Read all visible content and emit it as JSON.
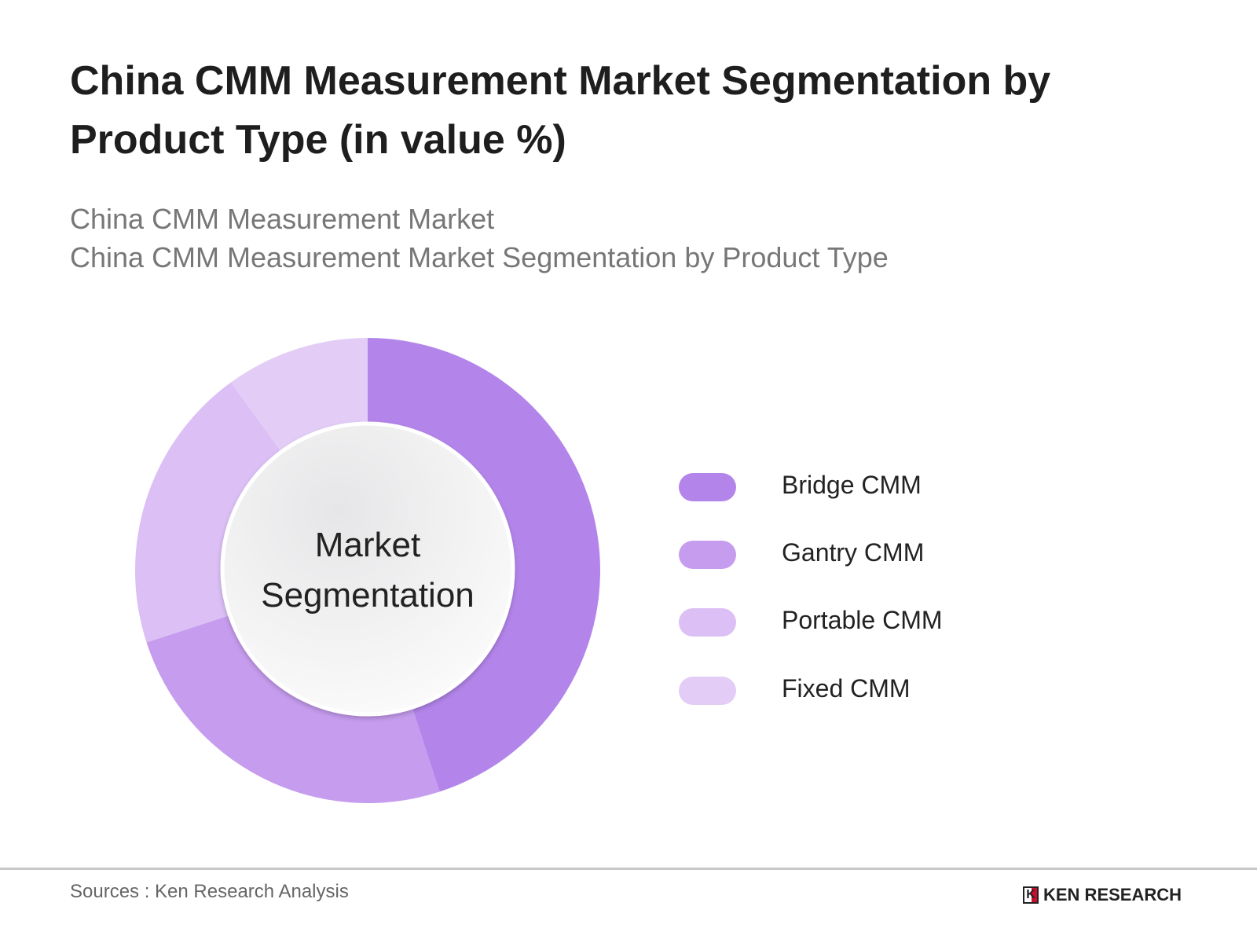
{
  "chart_data": {
    "type": "pie",
    "variant": "donut",
    "title": "China CMM Measurement Market Segmentation by Product Type (in value %)",
    "subtitle_lines": [
      "China CMM Measurement Market",
      "China CMM Measurement Market Segmentation by Product Type"
    ],
    "center_label": [
      "Market",
      "Segmentation"
    ],
    "categories": [
      "Bridge CMM",
      "Gantry CMM",
      "Portable CMM",
      "Fixed CMM"
    ],
    "values": [
      45,
      25,
      20,
      10
    ],
    "colors": [
      "#b385ea",
      "#c69cee",
      "#dbbff5",
      "#e3cdf6"
    ],
    "legend_position": "right"
  },
  "footer": {
    "source": "Sources : Ken Research Analysis",
    "logo_text": "KEN RESEARCH"
  }
}
